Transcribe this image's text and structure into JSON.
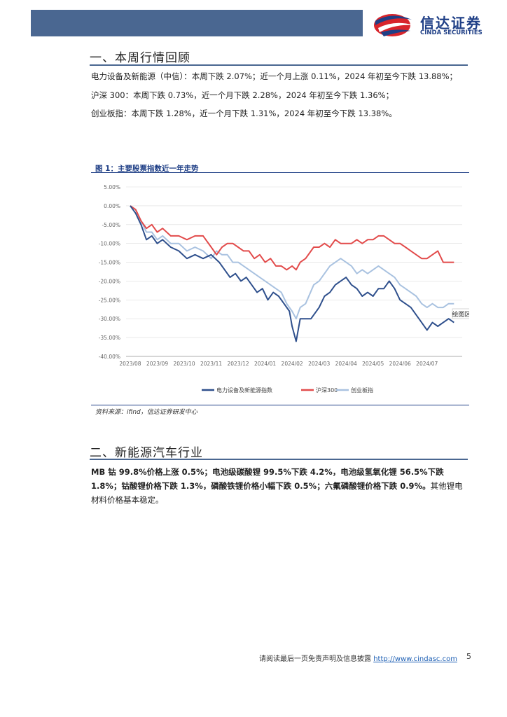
{
  "header": {
    "logo_cn": "信达证券",
    "logo_en": "CINDA SECURITIES",
    "brand_red": "#d8242b",
    "brand_blue": "#1f3f86",
    "bar_color": "#4a6791"
  },
  "section1": {
    "title": "一、本周行情回顾",
    "line1": "电力设备及新能源（中信）：本周下跌 2.07%；近一个月上涨 0.11%，2024 年初至今下跌 13.88%；",
    "line2": "沪深 300：本周下跌 0.73%，近一个月下跌 2.28%，2024 年初至今下跌 1.36%；",
    "line3": "创业板指：本周下跌 1.28%，近一个月下跌 1.31%，2024 年初至今下跌 13.38%。"
  },
  "figure": {
    "title": "图 1：主要股票指数近一年走势",
    "source": "资料来源：ifind，信达证券研发中心",
    "overlay_label": "绘图区"
  },
  "chart_data": {
    "type": "line",
    "title": "",
    "xlabel": "",
    "ylabel": "",
    "x_ticks": [
      "2023/08",
      "2023/09",
      "2023/10",
      "2023/11",
      "2023/12",
      "2024/01",
      "2024/02",
      "2024/03",
      "2024/04",
      "2024/05",
      "2024/06",
      "2024/07"
    ],
    "y_ticks": [
      "5.00%",
      "0.00%",
      "-5.00%",
      "-10.00%",
      "-15.00%",
      "-20.00%",
      "-25.00%",
      "-30.00%",
      "-35.00%",
      "-40.00%"
    ],
    "ylim": [
      -40,
      5
    ],
    "x_range_months": [
      0,
      12.2
    ],
    "grid": true,
    "legend_position": "bottom",
    "series": [
      {
        "name": "电力设备及新能源指数",
        "color": "#2e4f8c",
        "points": [
          [
            0,
            0
          ],
          [
            0.2,
            -2
          ],
          [
            0.4,
            -5
          ],
          [
            0.6,
            -9
          ],
          [
            0.8,
            -8
          ],
          [
            1.0,
            -10
          ],
          [
            1.2,
            -9
          ],
          [
            1.5,
            -11
          ],
          [
            1.8,
            -12
          ],
          [
            2.1,
            -14
          ],
          [
            2.4,
            -13
          ],
          [
            2.7,
            -14
          ],
          [
            3.0,
            -13
          ],
          [
            3.3,
            -15
          ],
          [
            3.5,
            -17
          ],
          [
            3.7,
            -19
          ],
          [
            3.9,
            -18
          ],
          [
            4.1,
            -20
          ],
          [
            4.3,
            -19
          ],
          [
            4.5,
            -21
          ],
          [
            4.7,
            -23
          ],
          [
            4.9,
            -22
          ],
          [
            5.1,
            -25
          ],
          [
            5.3,
            -23
          ],
          [
            5.5,
            -24
          ],
          [
            5.7,
            -26
          ],
          [
            5.9,
            -28
          ],
          [
            6.0,
            -32
          ],
          [
            6.15,
            -36
          ],
          [
            6.3,
            -30
          ],
          [
            6.5,
            -30
          ],
          [
            6.7,
            -30
          ],
          [
            7.0,
            -27
          ],
          [
            7.2,
            -24
          ],
          [
            7.4,
            -23
          ],
          [
            7.6,
            -21
          ],
          [
            7.8,
            -20
          ],
          [
            8.0,
            -19
          ],
          [
            8.2,
            -21
          ],
          [
            8.4,
            -22
          ],
          [
            8.6,
            -24
          ],
          [
            8.8,
            -23
          ],
          [
            9.0,
            -24
          ],
          [
            9.2,
            -22
          ],
          [
            9.4,
            -22
          ],
          [
            9.6,
            -20
          ],
          [
            9.8,
            -22
          ],
          [
            10.0,
            -25
          ],
          [
            10.2,
            -26
          ],
          [
            10.4,
            -27
          ],
          [
            10.6,
            -29
          ],
          [
            10.8,
            -31
          ],
          [
            11.0,
            -33
          ],
          [
            11.2,
            -31
          ],
          [
            11.4,
            -32
          ],
          [
            11.6,
            -31
          ],
          [
            11.8,
            -30
          ],
          [
            12.0,
            -31
          ]
        ]
      },
      {
        "name": "沪深300",
        "color": "#e24b4b",
        "points": [
          [
            0,
            0
          ],
          [
            0.2,
            -1
          ],
          [
            0.4,
            -4
          ],
          [
            0.6,
            -6
          ],
          [
            0.8,
            -5
          ],
          [
            1.0,
            -7
          ],
          [
            1.2,
            -6
          ],
          [
            1.5,
            -8
          ],
          [
            1.8,
            -8
          ],
          [
            2.1,
            -9
          ],
          [
            2.4,
            -8
          ],
          [
            2.7,
            -8
          ],
          [
            3.0,
            -11
          ],
          [
            3.2,
            -13
          ],
          [
            3.4,
            -11
          ],
          [
            3.6,
            -10
          ],
          [
            3.8,
            -10
          ],
          [
            4.0,
            -11
          ],
          [
            4.2,
            -12
          ],
          [
            4.4,
            -12
          ],
          [
            4.6,
            -14
          ],
          [
            4.8,
            -13
          ],
          [
            5.0,
            -15
          ],
          [
            5.2,
            -14
          ],
          [
            5.4,
            -16
          ],
          [
            5.6,
            -16
          ],
          [
            5.8,
            -17
          ],
          [
            6.0,
            -16
          ],
          [
            6.15,
            -17
          ],
          [
            6.3,
            -15
          ],
          [
            6.5,
            -14
          ],
          [
            6.8,
            -11
          ],
          [
            7.0,
            -11
          ],
          [
            7.2,
            -10
          ],
          [
            7.4,
            -11
          ],
          [
            7.6,
            -9
          ],
          [
            7.8,
            -10
          ],
          [
            8.0,
            -10
          ],
          [
            8.2,
            -10
          ],
          [
            8.4,
            -9
          ],
          [
            8.6,
            -10
          ],
          [
            8.8,
            -9
          ],
          [
            9.0,
            -9
          ],
          [
            9.2,
            -8
          ],
          [
            9.4,
            -8
          ],
          [
            9.6,
            -9
          ],
          [
            9.8,
            -10
          ],
          [
            10.0,
            -10
          ],
          [
            10.2,
            -11
          ],
          [
            10.4,
            -12
          ],
          [
            10.6,
            -13
          ],
          [
            10.8,
            -14
          ],
          [
            11.0,
            -14
          ],
          [
            11.2,
            -13
          ],
          [
            11.4,
            -12
          ],
          [
            11.6,
            -15
          ],
          [
            11.8,
            -15
          ],
          [
            12.0,
            -15
          ]
        ]
      },
      {
        "name": "创业板指",
        "color": "#a9c2e0",
        "points": [
          [
            0,
            0
          ],
          [
            0.2,
            -1
          ],
          [
            0.4,
            -4
          ],
          [
            0.6,
            -7
          ],
          [
            0.8,
            -7
          ],
          [
            1.0,
            -9
          ],
          [
            1.2,
            -8
          ],
          [
            1.5,
            -10
          ],
          [
            1.8,
            -10
          ],
          [
            2.1,
            -12
          ],
          [
            2.4,
            -11
          ],
          [
            2.7,
            -12
          ],
          [
            3.0,
            -14
          ],
          [
            3.2,
            -12
          ],
          [
            3.4,
            -13
          ],
          [
            3.6,
            -13
          ],
          [
            3.8,
            -15
          ],
          [
            4.0,
            -15
          ],
          [
            4.2,
            -16
          ],
          [
            4.4,
            -17
          ],
          [
            4.6,
            -18
          ],
          [
            4.8,
            -19
          ],
          [
            5.0,
            -20
          ],
          [
            5.2,
            -21
          ],
          [
            5.4,
            -22
          ],
          [
            5.6,
            -23
          ],
          [
            5.8,
            -26
          ],
          [
            6.0,
            -28
          ],
          [
            6.15,
            -30
          ],
          [
            6.3,
            -27
          ],
          [
            6.5,
            -26
          ],
          [
            6.8,
            -21
          ],
          [
            7.0,
            -20
          ],
          [
            7.2,
            -18
          ],
          [
            7.4,
            -16
          ],
          [
            7.6,
            -15
          ],
          [
            7.8,
            -14
          ],
          [
            8.0,
            -15
          ],
          [
            8.2,
            -16
          ],
          [
            8.4,
            -18
          ],
          [
            8.6,
            -17
          ],
          [
            8.8,
            -18
          ],
          [
            9.0,
            -17
          ],
          [
            9.2,
            -16
          ],
          [
            9.4,
            -17
          ],
          [
            9.6,
            -18
          ],
          [
            9.8,
            -19
          ],
          [
            10.0,
            -21
          ],
          [
            10.2,
            -22
          ],
          [
            10.4,
            -23
          ],
          [
            10.6,
            -24
          ],
          [
            10.8,
            -26
          ],
          [
            11.0,
            -27
          ],
          [
            11.2,
            -26
          ],
          [
            11.4,
            -27
          ],
          [
            11.6,
            -27
          ],
          [
            11.8,
            -26
          ],
          [
            12.0,
            -26
          ]
        ]
      }
    ]
  },
  "section2": {
    "title": "二、新能源汽车行业",
    "para_bold": "MB 钴 99.8%价格上涨 0.5%；电池级碳酸锂 99.5%下跌 4.2%，电池级氢氧化锂 56.5%下跌 1.8%；钴酸锂价格下跌 1.3%，磷酸铁锂价格小幅下跌 0.5%；六氟磷酸锂价格下跌 0.9%。",
    "para_normal": "其他锂电材料价格基本稳定。"
  },
  "footer": {
    "disclaimer": "请阅读最后一页免责声明及信息披露",
    "url": "http://www.cindasc.com",
    "page": "5"
  }
}
